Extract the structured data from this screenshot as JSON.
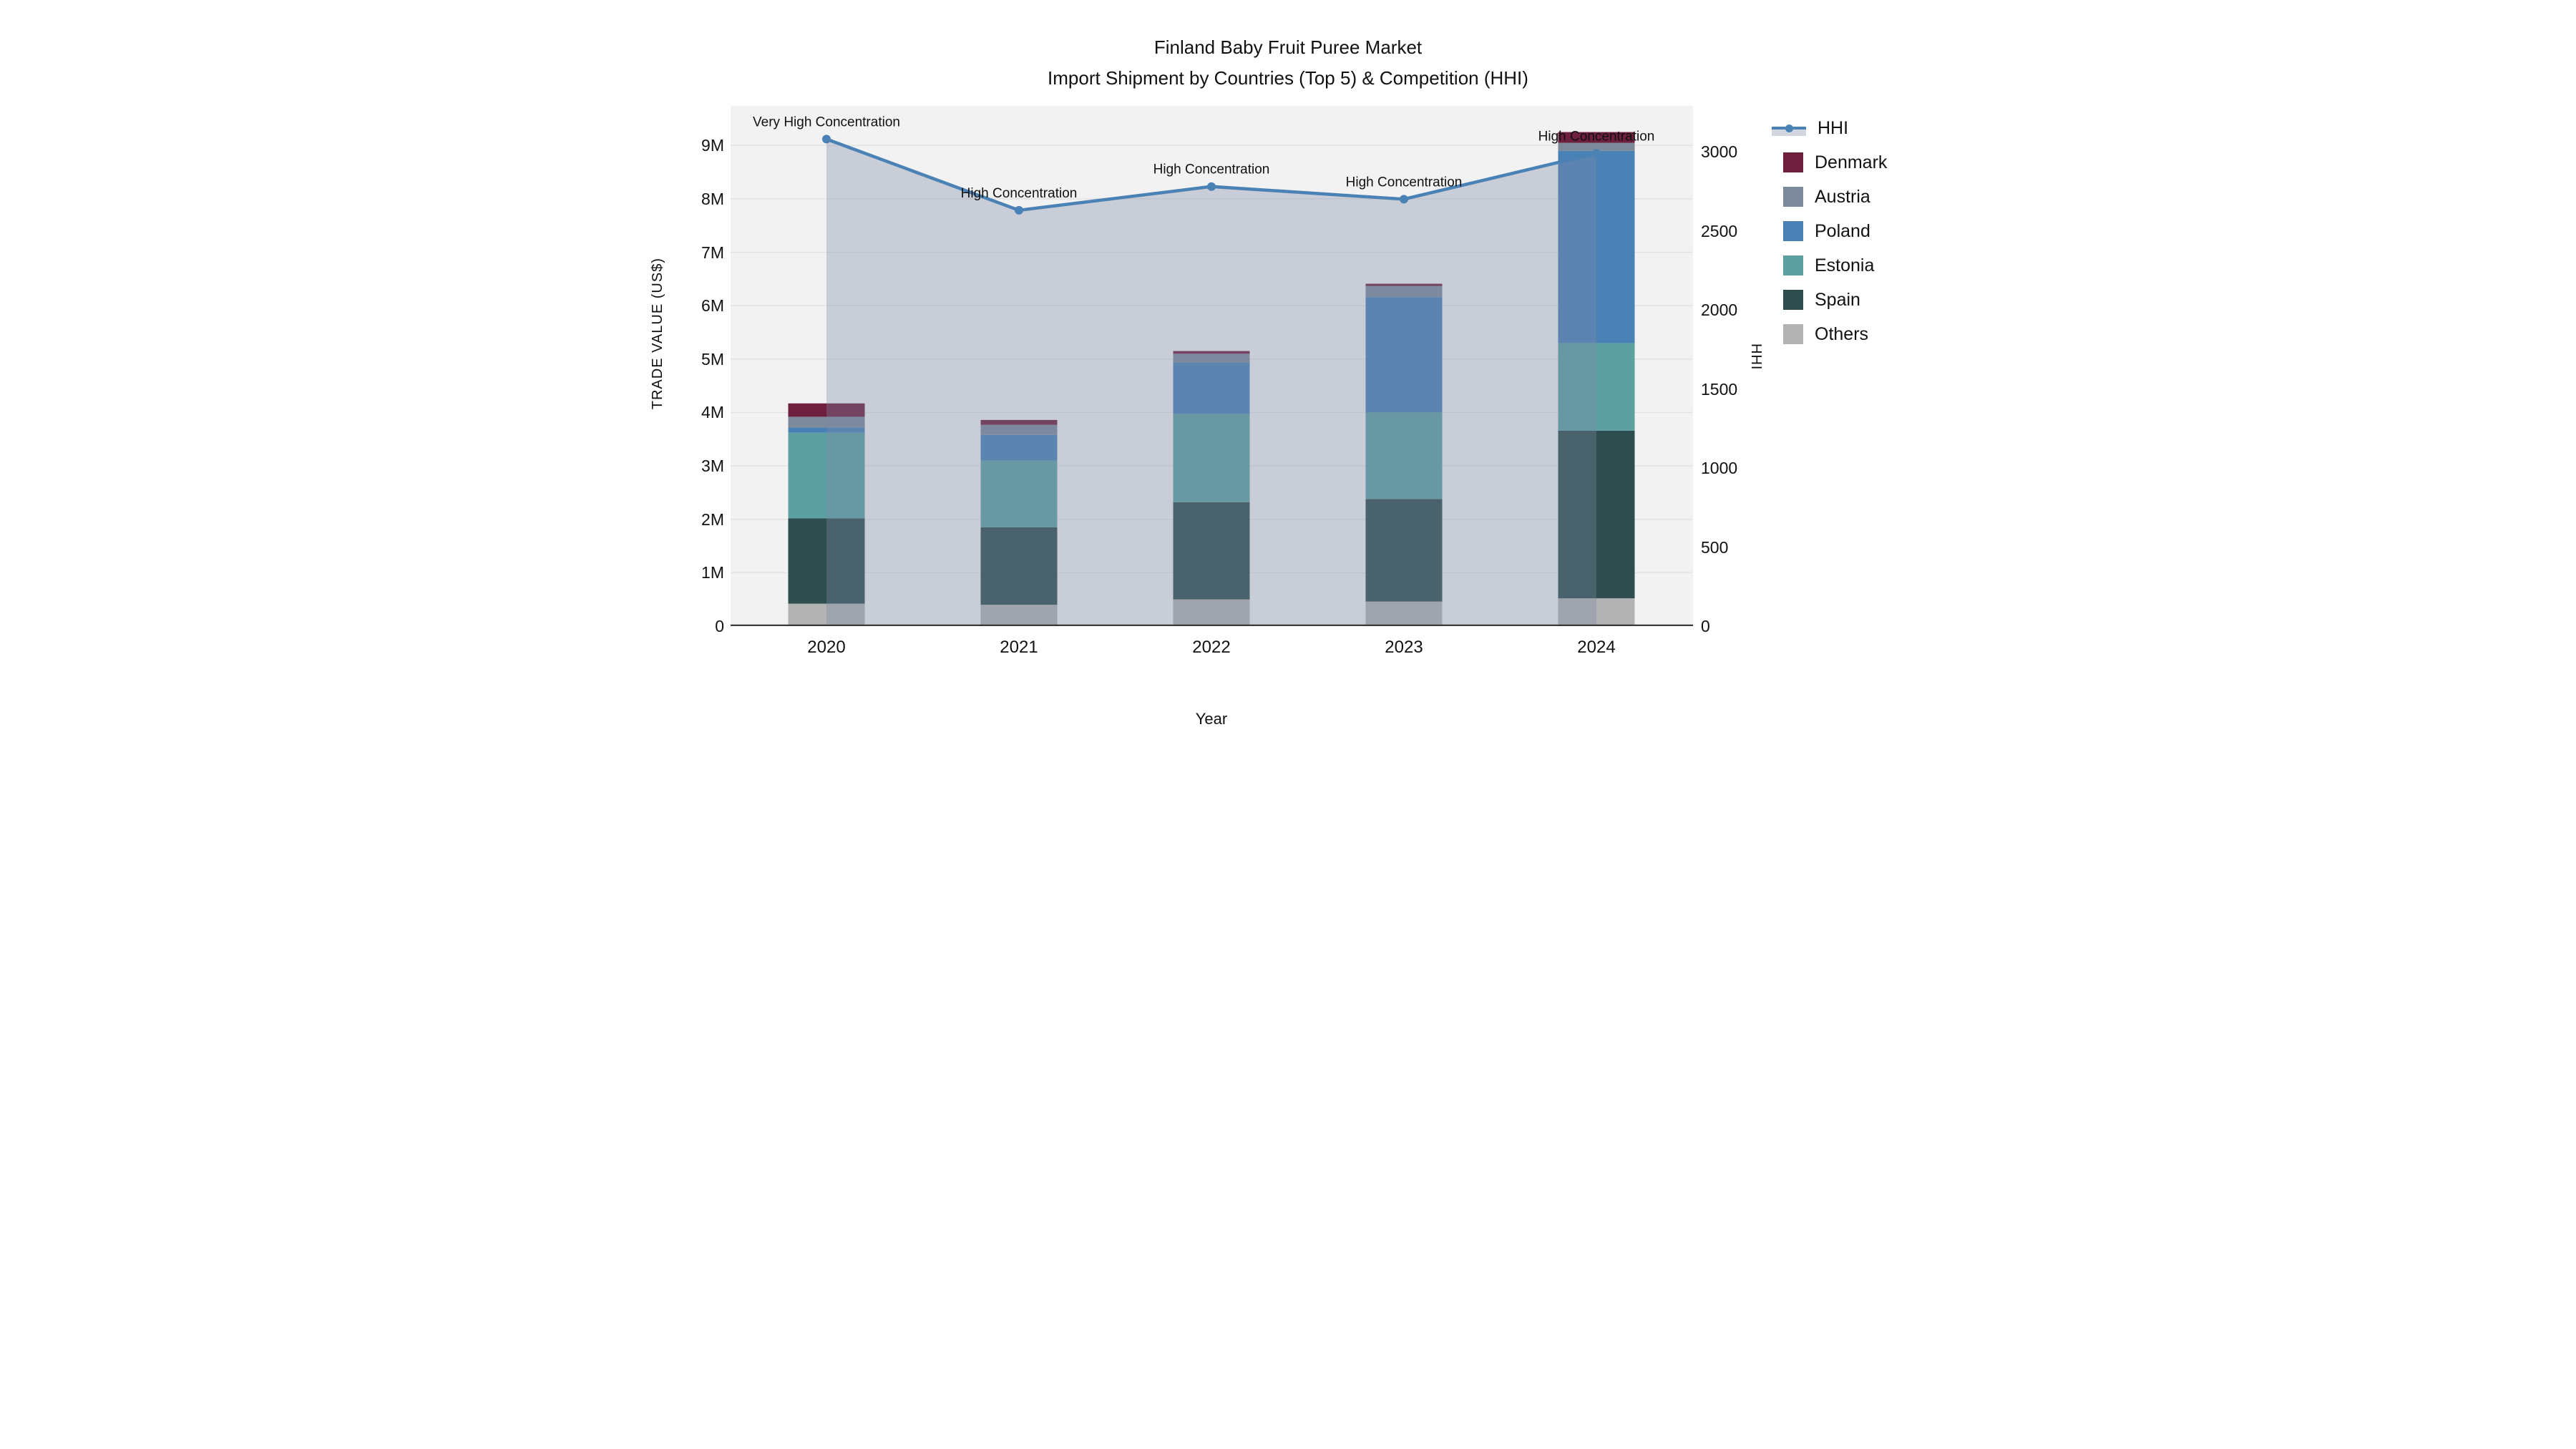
{
  "title": {
    "line1": "Finland Baby Fruit Puree Market",
    "line2": "Import Shipment by Countries (Top 5) & Competition (HHI)"
  },
  "axes": {
    "x_label": "Year",
    "y_left_label": "TRADE VALUE (US$)",
    "y_right_label": "HHI",
    "y_left_ticks": [
      "0",
      "1M",
      "2M",
      "3M",
      "4M",
      "5M",
      "6M",
      "7M",
      "8M",
      "9M"
    ],
    "y_right_ticks": [
      "0",
      "500",
      "1000",
      "1500",
      "2000",
      "2500",
      "3000"
    ],
    "y_left_max_m": 9.74,
    "y_right_max": 3290
  },
  "colors": {
    "background": "#ffffff",
    "plot_background": "#f2f2f2",
    "gridline": "#e2e2e2",
    "axis_line": "#3a3a3a",
    "text": "#111111",
    "hhi_line": "#4a82b5",
    "hhi_area": "rgba(125,138,165,0.35)",
    "area_swatch": "#d1d6df"
  },
  "legend": {
    "items": [
      {
        "label": "HHI",
        "type": "line",
        "color": "#4a82b5"
      },
      {
        "label": "Denmark",
        "type": "box",
        "color": "#6d1f3d"
      },
      {
        "label": "Austria",
        "type": "box",
        "color": "#7b899a"
      },
      {
        "label": "Poland",
        "type": "box",
        "color": "#4a81b5"
      },
      {
        "label": "Estonia",
        "type": "box",
        "color": "#5da0a1"
      },
      {
        "label": "Spain",
        "type": "box",
        "color": "#2e4d4e"
      },
      {
        "label": "Others",
        "type": "box",
        "color": "#b3b3b3"
      }
    ]
  },
  "chart_data": {
    "type": "combo-stacked-bar-with-line",
    "title": "Finland Baby Fruit Puree Market — Import Shipment by Countries (Top 5) & Competition (HHI)",
    "xlabel": "Year",
    "ylabel_left": "TRADE VALUE (US$)",
    "ylabel_right": "HHI",
    "ylim_left_millions": [
      0,
      9.74
    ],
    "ylim_right": [
      0,
      3290
    ],
    "grid": true,
    "legend_position": "right",
    "categories": [
      "2020",
      "2021",
      "2022",
      "2023",
      "2024"
    ],
    "bar_totals_millions": [
      4.17,
      3.86,
      5.15,
      6.41,
      9.25
    ],
    "series": [
      {
        "name": "Others",
        "color": "#b3b3b3",
        "values_millions": [
          0.42,
          0.4,
          0.5,
          0.46,
          0.52
        ]
      },
      {
        "name": "Spain",
        "color": "#2e4d4e",
        "values_millions": [
          1.6,
          1.45,
          1.82,
          1.92,
          3.14
        ]
      },
      {
        "name": "Estonia",
        "color": "#5da0a1",
        "values_millions": [
          1.6,
          1.25,
          1.65,
          1.62,
          1.64
        ]
      },
      {
        "name": "Poland",
        "color": "#4a81b5",
        "values_millions": [
          0.1,
          0.48,
          0.96,
          2.16,
          3.6
        ]
      },
      {
        "name": "Austria",
        "color": "#7b899a",
        "values_millions": [
          0.2,
          0.19,
          0.17,
          0.21,
          0.15
        ]
      },
      {
        "name": "Denmark",
        "color": "#6d1f3d",
        "values_millions": [
          0.25,
          0.09,
          0.05,
          0.04,
          0.2
        ]
      }
    ],
    "line_series": {
      "name": "HHI",
      "color": "#4a82b5",
      "area_fill": "rgba(125,138,165,0.35)",
      "values": [
        3080,
        2630,
        2780,
        2700,
        2990
      ]
    },
    "annotations": [
      "Very High Concentration",
      "High Concentration",
      "High Concentration",
      "High Concentration",
      "High Concentration"
    ]
  }
}
